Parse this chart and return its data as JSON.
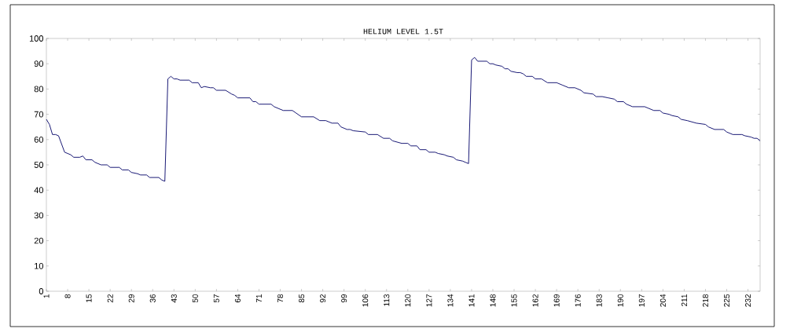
{
  "chart_data": {
    "type": "line",
    "title": "HELIUM LEVEL 1.5T",
    "x": [
      1,
      2,
      3,
      4,
      5,
      7,
      9,
      10,
      12,
      13,
      14,
      16,
      17,
      19,
      21,
      22,
      25,
      26,
      28,
      29,
      31,
      32,
      34,
      35,
      38,
      39,
      40,
      41,
      42,
      43,
      44,
      45,
      48,
      49,
      51,
      52,
      53,
      55,
      56,
      57,
      60,
      62,
      63,
      64,
      68,
      69,
      70,
      71,
      74,
      75,
      76,
      79,
      82,
      85,
      89,
      91,
      93,
      95,
      97,
      98,
      100,
      101,
      102,
      106,
      107,
      110,
      112,
      114,
      115,
      118,
      120,
      121,
      123,
      124,
      126,
      127,
      129,
      130,
      132,
      133,
      135,
      136,
      138,
      139,
      140,
      141,
      142,
      143,
      146,
      147,
      148,
      149,
      151,
      152,
      153,
      154,
      156,
      157,
      158,
      159,
      161,
      162,
      164,
      166,
      169,
      171,
      173,
      175,
      177,
      178,
      181,
      182,
      184,
      186,
      188,
      189,
      191,
      192,
      194,
      198,
      199,
      201,
      203,
      204,
      206,
      207,
      209,
      210,
      212,
      215,
      218,
      219,
      221,
      224,
      225,
      227,
      230,
      231,
      233,
      234,
      235,
      236
    ],
    "values": [
      68,
      66,
      62,
      62,
      61.5,
      55,
      54,
      53,
      53,
      53.5,
      52,
      52,
      51,
      50,
      50,
      49,
      49,
      48,
      48,
      47,
      46.5,
      46,
      46,
      45,
      45,
      44,
      43.5,
      84,
      85,
      84,
      84,
      83.5,
      83.5,
      82.5,
      82.5,
      80.5,
      81,
      80.5,
      80.5,
      79.5,
      79.5,
      78,
      77.5,
      76.5,
      76.5,
      75,
      75,
      74,
      74,
      74,
      73,
      71.5,
      71.5,
      69,
      69,
      67.5,
      67.5,
      66.5,
      66.5,
      65,
      64,
      64,
      63.5,
      63,
      62,
      62,
      60.5,
      60.5,
      59.5,
      58.5,
      58.5,
      57.5,
      57.5,
      56,
      56,
      55,
      55,
      54.5,
      54,
      53.5,
      53,
      52,
      51.5,
      51,
      50.5,
      91.5,
      92.5,
      91,
      91,
      90,
      90,
      89.5,
      89,
      88,
      88,
      87,
      86.5,
      86.5,
      86,
      85,
      85,
      84,
      84,
      82.5,
      82.5,
      81.5,
      80.5,
      80.5,
      79.5,
      78.5,
      78,
      77,
      77,
      76.5,
      76,
      75,
      75,
      74,
      73,
      73,
      72.5,
      71.5,
      71.5,
      70.5,
      70,
      69.5,
      69,
      68,
      67.5,
      66.5,
      66,
      65,
      64,
      64,
      63,
      62,
      62,
      61.5,
      61,
      60.5,
      60.5,
      59.5
    ],
    "color": "#000066",
    "xlim": [
      1,
      236
    ],
    "xticks": [
      1,
      8,
      15,
      22,
      29,
      36,
      43,
      50,
      57,
      64,
      71,
      78,
      85,
      92,
      99,
      106,
      113,
      120,
      127,
      134,
      141,
      148,
      155,
      162,
      169,
      176,
      183,
      190,
      197,
      204,
      211,
      218,
      225,
      232
    ],
    "ylim": [
      0,
      100
    ],
    "yticks": [
      0,
      10,
      20,
      30,
      40,
      50,
      60,
      70,
      80,
      90,
      100
    ]
  }
}
